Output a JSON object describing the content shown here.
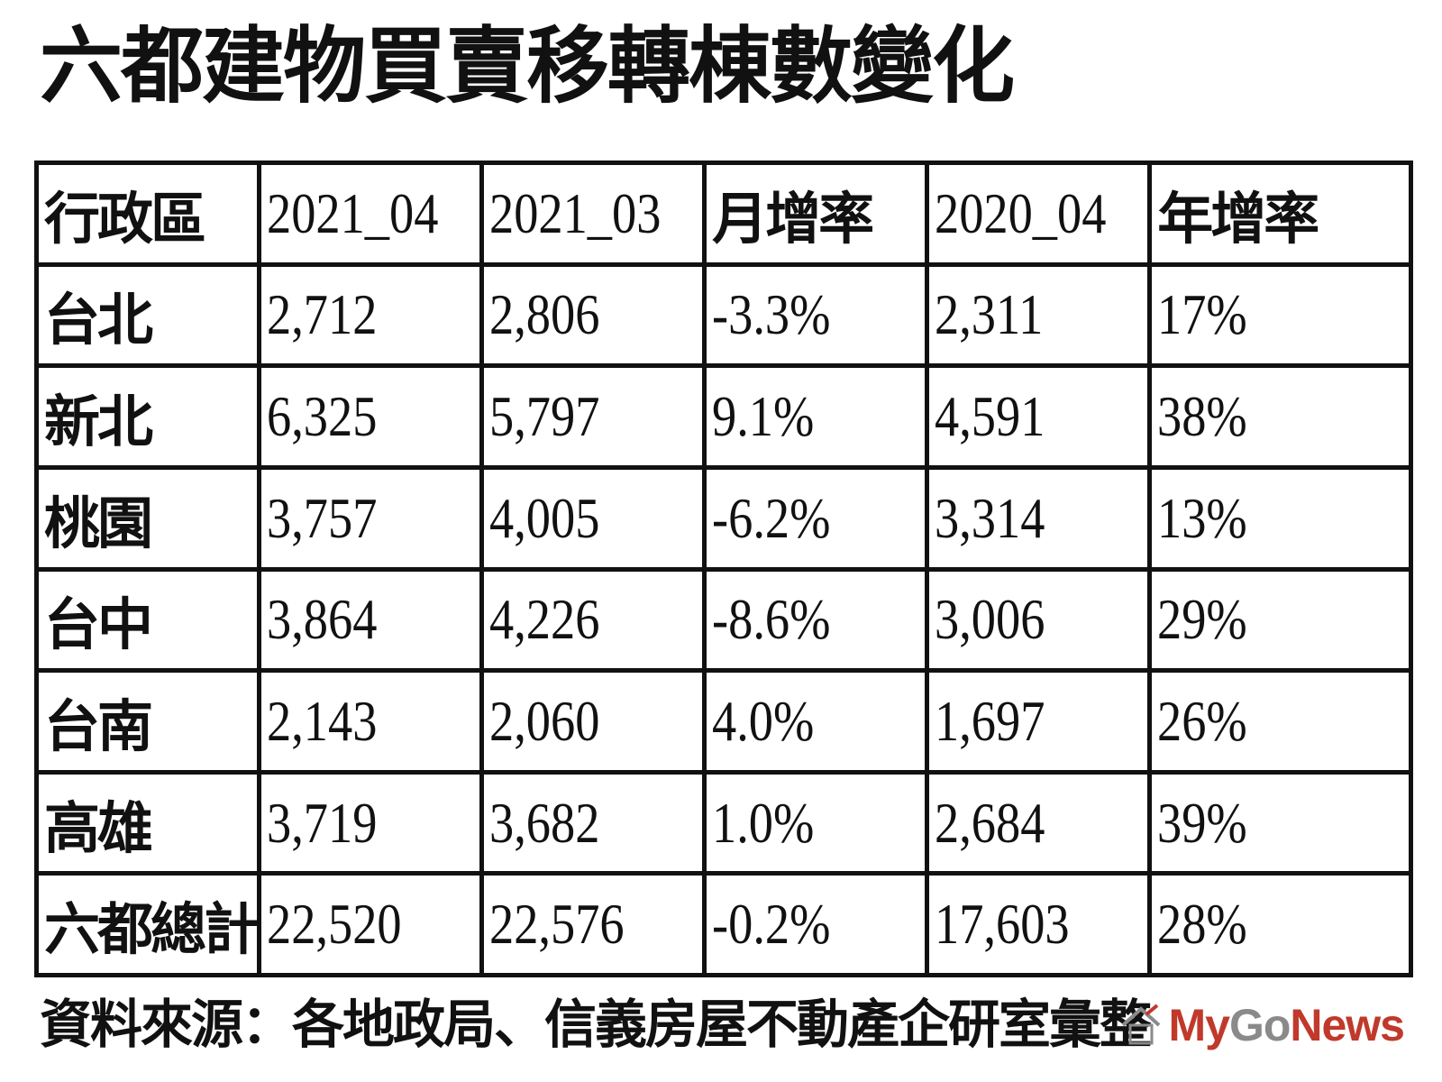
{
  "title": "六都建物買賣移轉棟數變化",
  "chart_data": {
    "type": "table",
    "columns": [
      "行政區",
      "2021_04",
      "2021_03",
      "月增率",
      "2020_04",
      "年增率"
    ],
    "rows": [
      [
        "台北",
        "2,712",
        "2,806",
        "-3.3%",
        "2,311",
        "17%"
      ],
      [
        "新北",
        "6,325",
        "5,797",
        "9.1%",
        "4,591",
        "38%"
      ],
      [
        "桃園",
        "3,757",
        "4,005",
        "-6.2%",
        "3,314",
        "13%"
      ],
      [
        "台中",
        "3,864",
        "4,226",
        "-8.6%",
        "3,006",
        "29%"
      ],
      [
        "台南",
        "2,143",
        "2,060",
        "4.0%",
        "1,697",
        "26%"
      ],
      [
        "高雄",
        "3,719",
        "3,682",
        "1.0%",
        "2,684",
        "39%"
      ],
      [
        "六都總計",
        "22,520",
        "22,576",
        "-0.2%",
        "17,603",
        "28%"
      ]
    ]
  },
  "source": "資料來源：各地政局、信義房屋不動產企研室彙整",
  "watermark": {
    "logo_text": "MyGoNews",
    "colors": {
      "brand": "#c0392b",
      "mark": "#8a8a8a"
    }
  }
}
